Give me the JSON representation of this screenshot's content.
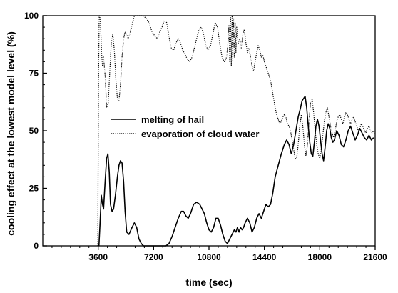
{
  "chart_data": {
    "type": "line",
    "xlabel": "time (sec)",
    "ylabel": "cooling effect at the lowest model level (%)",
    "xlim": [
      0,
      21600
    ],
    "ylim": [
      0,
      100
    ],
    "x_ticks": [
      3600,
      7200,
      10800,
      14400,
      18000,
      21600
    ],
    "y_ticks": [
      0,
      25,
      50,
      75,
      100
    ],
    "x_minor_step": 600,
    "y_minor_step": 5,
    "legend_position": "center",
    "series": [
      {
        "name": "melting of hail",
        "style": "solid",
        "points": [
          [
            3650,
            0
          ],
          [
            3720,
            10
          ],
          [
            3800,
            22
          ],
          [
            3880,
            18
          ],
          [
            3950,
            16
          ],
          [
            4050,
            28
          ],
          [
            4150,
            38
          ],
          [
            4230,
            40
          ],
          [
            4320,
            32
          ],
          [
            4400,
            18
          ],
          [
            4500,
            15
          ],
          [
            4600,
            16
          ],
          [
            4720,
            22
          ],
          [
            4850,
            30
          ],
          [
            4950,
            35
          ],
          [
            5050,
            37
          ],
          [
            5150,
            36
          ],
          [
            5250,
            28
          ],
          [
            5350,
            15
          ],
          [
            5450,
            6
          ],
          [
            5600,
            5
          ],
          [
            5800,
            8
          ],
          [
            5950,
            10
          ],
          [
            6100,
            8
          ],
          [
            6250,
            3
          ],
          [
            6400,
            1
          ],
          [
            6550,
            0
          ],
          [
            7000,
            0
          ],
          [
            7500,
            0
          ],
          [
            8000,
            0
          ],
          [
            8200,
            1
          ],
          [
            8400,
            4
          ],
          [
            8600,
            8
          ],
          [
            8800,
            12
          ],
          [
            9000,
            15
          ],
          [
            9150,
            15
          ],
          [
            9300,
            13
          ],
          [
            9450,
            12
          ],
          [
            9600,
            14
          ],
          [
            9800,
            18
          ],
          [
            10000,
            19
          ],
          [
            10200,
            18
          ],
          [
            10350,
            16
          ],
          [
            10500,
            14
          ],
          [
            10650,
            10
          ],
          [
            10800,
            7
          ],
          [
            10950,
            6
          ],
          [
            11100,
            8
          ],
          [
            11250,
            12
          ],
          [
            11400,
            12
          ],
          [
            11550,
            9
          ],
          [
            11700,
            5
          ],
          [
            11850,
            2
          ],
          [
            12000,
            1
          ],
          [
            12150,
            3
          ],
          [
            12300,
            5
          ],
          [
            12450,
            7
          ],
          [
            12550,
            6
          ],
          [
            12650,
            8
          ],
          [
            12750,
            6
          ],
          [
            12850,
            8
          ],
          [
            12950,
            7
          ],
          [
            13050,
            8
          ],
          [
            13150,
            10
          ],
          [
            13300,
            12
          ],
          [
            13450,
            10
          ],
          [
            13600,
            6
          ],
          [
            13750,
            8
          ],
          [
            13900,
            12
          ],
          [
            14050,
            14
          ],
          [
            14200,
            12
          ],
          [
            14350,
            15
          ],
          [
            14500,
            18
          ],
          [
            14650,
            17
          ],
          [
            14800,
            18
          ],
          [
            14950,
            23
          ],
          [
            15100,
            30
          ],
          [
            15300,
            35
          ],
          [
            15500,
            40
          ],
          [
            15700,
            44
          ],
          [
            15850,
            46
          ],
          [
            16000,
            44
          ],
          [
            16150,
            40
          ],
          [
            16300,
            44
          ],
          [
            16450,
            50
          ],
          [
            16600,
            56
          ],
          [
            16750,
            60
          ],
          [
            16850,
            63
          ],
          [
            16950,
            64
          ],
          [
            17050,
            65
          ],
          [
            17150,
            60
          ],
          [
            17250,
            52
          ],
          [
            17350,
            45
          ],
          [
            17450,
            40
          ],
          [
            17550,
            39
          ],
          [
            17650,
            45
          ],
          [
            17750,
            52
          ],
          [
            17850,
            55
          ],
          [
            17950,
            52
          ],
          [
            18050,
            46
          ],
          [
            18150,
            40
          ],
          [
            18250,
            37
          ],
          [
            18350,
            43
          ],
          [
            18450,
            50
          ],
          [
            18550,
            53
          ],
          [
            18650,
            51
          ],
          [
            18750,
            47
          ],
          [
            18850,
            45
          ],
          [
            18950,
            46
          ],
          [
            19100,
            50
          ],
          [
            19250,
            48
          ],
          [
            19400,
            44
          ],
          [
            19550,
            43
          ],
          [
            19700,
            46
          ],
          [
            19850,
            50
          ],
          [
            20000,
            52
          ],
          [
            20150,
            49
          ],
          [
            20300,
            46
          ],
          [
            20450,
            48
          ],
          [
            20600,
            51
          ],
          [
            20750,
            49
          ],
          [
            20900,
            47
          ],
          [
            21050,
            46
          ],
          [
            21200,
            48
          ],
          [
            21350,
            46
          ],
          [
            21500,
            47
          ]
        ]
      },
      {
        "name": "evaporation of cloud water",
        "style": "dotted",
        "points": [
          [
            3580,
            0
          ],
          [
            3590,
            30
          ],
          [
            3620,
            70
          ],
          [
            3660,
            100
          ],
          [
            3700,
            100
          ],
          [
            3760,
            95
          ],
          [
            3820,
            84
          ],
          [
            3880,
            78
          ],
          [
            3950,
            82
          ],
          [
            4050,
            74
          ],
          [
            4150,
            60
          ],
          [
            4250,
            62
          ],
          [
            4350,
            75
          ],
          [
            4450,
            88
          ],
          [
            4550,
            92
          ],
          [
            4650,
            85
          ],
          [
            4750,
            72
          ],
          [
            4850,
            64
          ],
          [
            4950,
            63
          ],
          [
            5050,
            70
          ],
          [
            5150,
            82
          ],
          [
            5250,
            90
          ],
          [
            5350,
            93
          ],
          [
            5450,
            92
          ],
          [
            5550,
            90
          ],
          [
            5650,
            92
          ],
          [
            5800,
            96
          ],
          [
            5950,
            100
          ],
          [
            6100,
            100
          ],
          [
            6300,
            100
          ],
          [
            6500,
            100
          ],
          [
            6700,
            99
          ],
          [
            6900,
            97
          ],
          [
            7100,
            93
          ],
          [
            7300,
            91
          ],
          [
            7450,
            90
          ],
          [
            7600,
            93
          ],
          [
            7750,
            95
          ],
          [
            7900,
            98
          ],
          [
            8050,
            97
          ],
          [
            8200,
            91
          ],
          [
            8350,
            86
          ],
          [
            8500,
            85
          ],
          [
            8650,
            88
          ],
          [
            8800,
            90
          ],
          [
            8950,
            88
          ],
          [
            9100,
            85
          ],
          [
            9250,
            83
          ],
          [
            9400,
            81
          ],
          [
            9550,
            80
          ],
          [
            9700,
            82
          ],
          [
            9850,
            86
          ],
          [
            10000,
            90
          ],
          [
            10150,
            94
          ],
          [
            10300,
            95
          ],
          [
            10450,
            92
          ],
          [
            10600,
            87
          ],
          [
            10750,
            85
          ],
          [
            10900,
            87
          ],
          [
            11050,
            92
          ],
          [
            11200,
            97
          ],
          [
            11350,
            95
          ],
          [
            11500,
            88
          ],
          [
            11650,
            82
          ],
          [
            11800,
            80
          ],
          [
            11950,
            82
          ],
          [
            12050,
            90
          ],
          [
            12100,
            96
          ],
          [
            12150,
            80
          ],
          [
            12200,
            100
          ],
          [
            12250,
            78
          ],
          [
            12300,
            100
          ],
          [
            12350,
            80
          ],
          [
            12400,
            99
          ],
          [
            12450,
            82
          ],
          [
            12500,
            97
          ],
          [
            12550,
            84
          ],
          [
            12600,
            95
          ],
          [
            12700,
            88
          ],
          [
            12800,
            90
          ],
          [
            12900,
            86
          ],
          [
            13000,
            92
          ],
          [
            13100,
            94
          ],
          [
            13200,
            88
          ],
          [
            13300,
            84
          ],
          [
            13400,
            86
          ],
          [
            13500,
            82
          ],
          [
            13600,
            78
          ],
          [
            13700,
            76
          ],
          [
            13800,
            80
          ],
          [
            13900,
            84
          ],
          [
            14000,
            87
          ],
          [
            14100,
            85
          ],
          [
            14200,
            82
          ],
          [
            14300,
            83
          ],
          [
            14400,
            80
          ],
          [
            14500,
            78
          ],
          [
            14600,
            76
          ],
          [
            14700,
            74
          ],
          [
            14800,
            72
          ],
          [
            14900,
            68
          ],
          [
            15000,
            64
          ],
          [
            15100,
            60
          ],
          [
            15200,
            57
          ],
          [
            15300,
            55
          ],
          [
            15400,
            53
          ],
          [
            15500,
            54
          ],
          [
            15600,
            56
          ],
          [
            15700,
            57
          ],
          [
            15800,
            56
          ],
          [
            15900,
            53
          ],
          [
            16000,
            52
          ],
          [
            16100,
            50
          ],
          [
            16200,
            46
          ],
          [
            16300,
            42
          ],
          [
            16400,
            38
          ],
          [
            16500,
            38
          ],
          [
            16600,
            44
          ],
          [
            16700,
            52
          ],
          [
            16800,
            57
          ],
          [
            16900,
            52
          ],
          [
            17000,
            44
          ],
          [
            17100,
            39
          ],
          [
            17200,
            44
          ],
          [
            17300,
            54
          ],
          [
            17400,
            62
          ],
          [
            17500,
            64
          ],
          [
            17600,
            58
          ],
          [
            17700,
            50
          ],
          [
            17800,
            44
          ],
          [
            17900,
            40
          ],
          [
            18000,
            38
          ],
          [
            18100,
            42
          ],
          [
            18200,
            48
          ],
          [
            18300,
            54
          ],
          [
            18400,
            58
          ],
          [
            18500,
            60
          ],
          [
            18600,
            56
          ],
          [
            18700,
            52
          ],
          [
            18800,
            49
          ],
          [
            18900,
            47
          ],
          [
            19000,
            50
          ],
          [
            19100,
            54
          ],
          [
            19200,
            56
          ],
          [
            19300,
            57
          ],
          [
            19400,
            55
          ],
          [
            19500,
            53
          ],
          [
            19600,
            56
          ],
          [
            19700,
            58
          ],
          [
            19800,
            57
          ],
          [
            19900,
            55
          ],
          [
            20000,
            53
          ],
          [
            20100,
            55
          ],
          [
            20200,
            56
          ],
          [
            20300,
            54
          ],
          [
            20400,
            52
          ],
          [
            20500,
            50
          ],
          [
            20600,
            51
          ],
          [
            20700,
            53
          ],
          [
            20800,
            52
          ],
          [
            20900,
            50
          ],
          [
            21000,
            49
          ],
          [
            21100,
            51
          ],
          [
            21200,
            52
          ],
          [
            21300,
            50
          ],
          [
            21400,
            49
          ],
          [
            21500,
            50
          ],
          [
            21590,
            49
          ]
        ]
      }
    ]
  }
}
